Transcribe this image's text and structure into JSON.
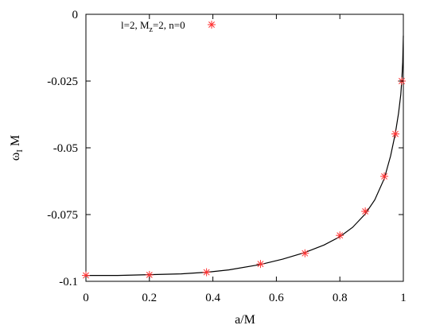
{
  "chart_data": {
    "type": "scatter",
    "xlabel": "a/M",
    "ylabel": {
      "main": "ω",
      "sub": "I",
      "tail": " M"
    },
    "xlim": [
      0,
      1
    ],
    "ylim": [
      -0.1,
      0
    ],
    "xticks": [
      {
        "value": 0,
        "label": "0"
      },
      {
        "value": 0.2,
        "label": "0.2"
      },
      {
        "value": 0.4,
        "label": "0.4"
      },
      {
        "value": 0.6,
        "label": "0.6"
      },
      {
        "value": 0.8,
        "label": "0.8"
      },
      {
        "value": 1,
        "label": "1"
      }
    ],
    "yticks": [
      {
        "value": 0,
        "label": "0"
      },
      {
        "value": -0.025,
        "label": "-0.025"
      },
      {
        "value": -0.05,
        "label": "-0.05"
      },
      {
        "value": -0.075,
        "label": "-0.075"
      },
      {
        "value": -0.1,
        "label": "-0.1"
      }
    ],
    "grid": false,
    "legend": {
      "placement": "top-left",
      "parts": {
        "a": "l=2, M",
        "sub": "z",
        "b": "=2, n=0"
      }
    },
    "series": [
      {
        "kind": "points",
        "color": "#ff3030",
        "marker": "asterisk",
        "x": [
          0.0,
          0.2,
          0.38,
          0.55,
          0.69,
          0.8,
          0.88,
          0.94,
          0.975,
          0.995
        ],
        "y": [
          -0.0978,
          -0.0976,
          -0.0966,
          -0.0935,
          -0.0895,
          -0.0828,
          -0.0738,
          -0.0607,
          -0.0448,
          -0.025
        ]
      },
      {
        "kind": "curve",
        "color": "#000000",
        "x": [
          0.0,
          0.1,
          0.2,
          0.3,
          0.38,
          0.45,
          0.55,
          0.62,
          0.69,
          0.75,
          0.8,
          0.84,
          0.88,
          0.91,
          0.94,
          0.96,
          0.975,
          0.985,
          0.992,
          0.995,
          0.998,
          1.0
        ],
        "y": [
          -0.0978,
          -0.0978,
          -0.0975,
          -0.0972,
          -0.0966,
          -0.0957,
          -0.0937,
          -0.0917,
          -0.0892,
          -0.0864,
          -0.0833,
          -0.0798,
          -0.0748,
          -0.0695,
          -0.0615,
          -0.053,
          -0.0445,
          -0.037,
          -0.03,
          -0.025,
          -0.018,
          -0.008
        ]
      }
    ]
  }
}
